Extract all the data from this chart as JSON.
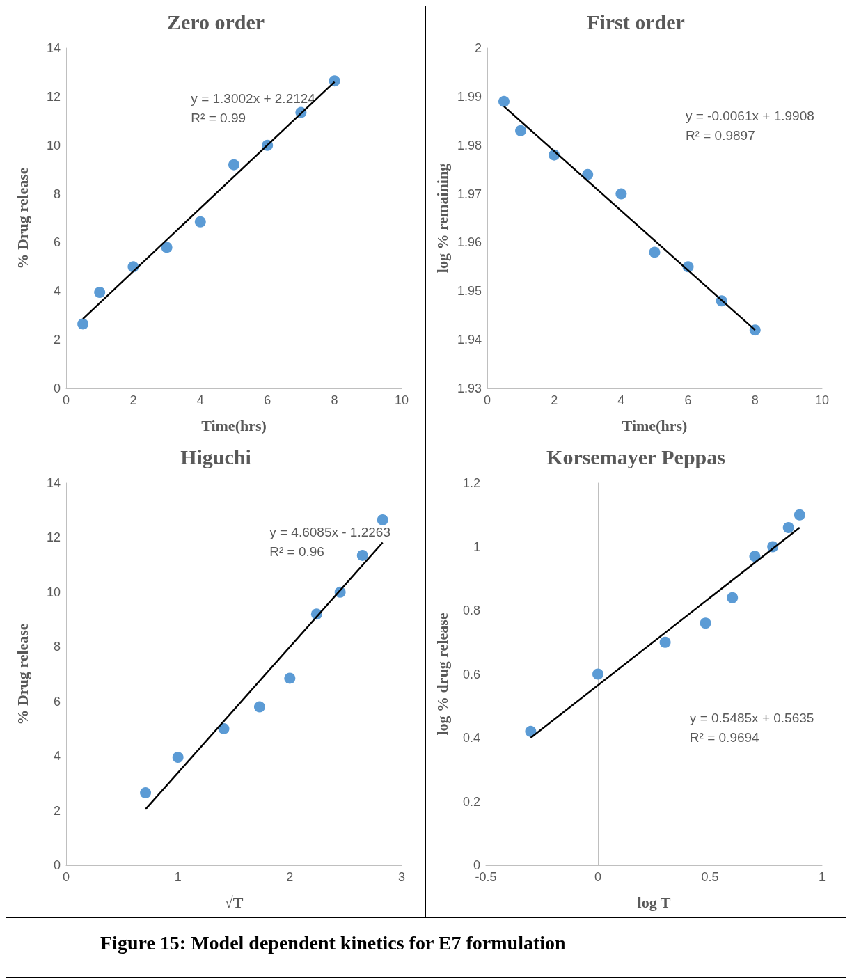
{
  "chart_data": [
    {
      "type": "scatter",
      "title": "Zero order",
      "xlabel": "Time(hrs)",
      "ylabel": "% Drug release",
      "marker": "circle",
      "grid": false,
      "xlim": [
        0,
        10
      ],
      "xticks": [
        0,
        2,
        4,
        6,
        8,
        10
      ],
      "ylim": [
        0,
        14
      ],
      "yticks": [
        0,
        2,
        4,
        6,
        8,
        10,
        12,
        14
      ],
      "annotations": [
        "y = 1.3002x + 2.2124",
        "R² = 0.99"
      ],
      "series": [
        {
          "color": "#5b9bd5",
          "x": [
            0.5,
            1,
            2,
            3,
            4,
            5,
            6,
            7,
            8
          ],
          "values": [
            2.65,
            3.95,
            5.0,
            5.8,
            6.85,
            9.2,
            10.0,
            11.35,
            12.65
          ]
        },
        {
          "type": "line",
          "color": "#000000",
          "marker": "none",
          "x": [
            0.5,
            8
          ],
          "values": [
            2.86,
            12.61
          ]
        }
      ]
    },
    {
      "type": "scatter",
      "title": "First order",
      "xlabel": "Time(hrs)",
      "ylabel": "log % remaining",
      "marker": "circle",
      "grid": false,
      "xlim": [
        0,
        10
      ],
      "xticks": [
        0,
        2,
        4,
        6,
        8,
        10
      ],
      "ylim": [
        1.93,
        2
      ],
      "yticks": [
        1.93,
        1.94,
        1.95,
        1.96,
        1.97,
        1.98,
        1.99,
        2
      ],
      "annotations": [
        "y = -0.0061x + 1.9908",
        "R² = 0.9897"
      ],
      "series": [
        {
          "color": "#5b9bd5",
          "x": [
            0.5,
            1,
            2,
            3,
            4,
            5,
            6,
            7,
            8
          ],
          "values": [
            1.989,
            1.983,
            1.978,
            1.974,
            1.97,
            1.958,
            1.955,
            1.948,
            1.942
          ]
        },
        {
          "type": "line",
          "color": "#000000",
          "marker": "none",
          "x": [
            0.5,
            8
          ],
          "values": [
            1.988,
            1.942
          ]
        }
      ]
    },
    {
      "type": "scatter",
      "title": "Higuchi",
      "xlabel": "√T",
      "ylabel": "% Drug release",
      "marker": "circle",
      "grid": false,
      "xlim": [
        0,
        3
      ],
      "xticks": [
        0,
        1,
        2,
        3
      ],
      "ylim": [
        0,
        14
      ],
      "yticks": [
        0,
        2,
        4,
        6,
        8,
        10,
        12,
        14
      ],
      "annotations": [
        "y = 4.6085x - 1.2263",
        "R² = 0.96"
      ],
      "series": [
        {
          "color": "#5b9bd5",
          "x": [
            0.71,
            1,
            1.41,
            1.73,
            2,
            2.24,
            2.45,
            2.65,
            2.83
          ],
          "values": [
            2.65,
            3.95,
            5.0,
            5.8,
            6.85,
            9.2,
            10.0,
            11.35,
            12.65
          ]
        },
        {
          "type": "line",
          "color": "#000000",
          "marker": "none",
          "x": [
            0.71,
            2.83
          ],
          "values": [
            2.05,
            11.82
          ]
        }
      ]
    },
    {
      "type": "scatter",
      "title": "Korsemayer Peppas",
      "xlabel": "log T",
      "ylabel": "log % drug release",
      "marker": "circle",
      "xlim": [
        -0.5,
        1
      ],
      "xticks": [
        -0.5,
        0,
        0.5,
        1
      ],
      "ylim": [
        0,
        1.2
      ],
      "yticks": [
        0,
        0.2,
        0.4,
        0.6,
        0.8,
        1,
        1.2
      ],
      "annotations": [
        "y = 0.5485x + 0.5635",
        "R² = 0.9694",
        "Figure 15: Model dependent kinetics for E7 formulation"
      ],
      "series": [
        {
          "color": "#5b9bd5",
          "x": [
            -0.3,
            0,
            0.3,
            0.48,
            0.6,
            0.7,
            0.78,
            0.85,
            0.9
          ],
          "values": [
            0.42,
            0.6,
            0.7,
            0.76,
            0.84,
            0.97,
            1.0,
            1.06,
            1.1
          ]
        },
        {
          "type": "line",
          "color": "#000000",
          "marker": "none",
          "x": [
            -0.3,
            0.9
          ],
          "values": [
            0.4,
            1.06
          ]
        }
      ]
    }
  ]
}
